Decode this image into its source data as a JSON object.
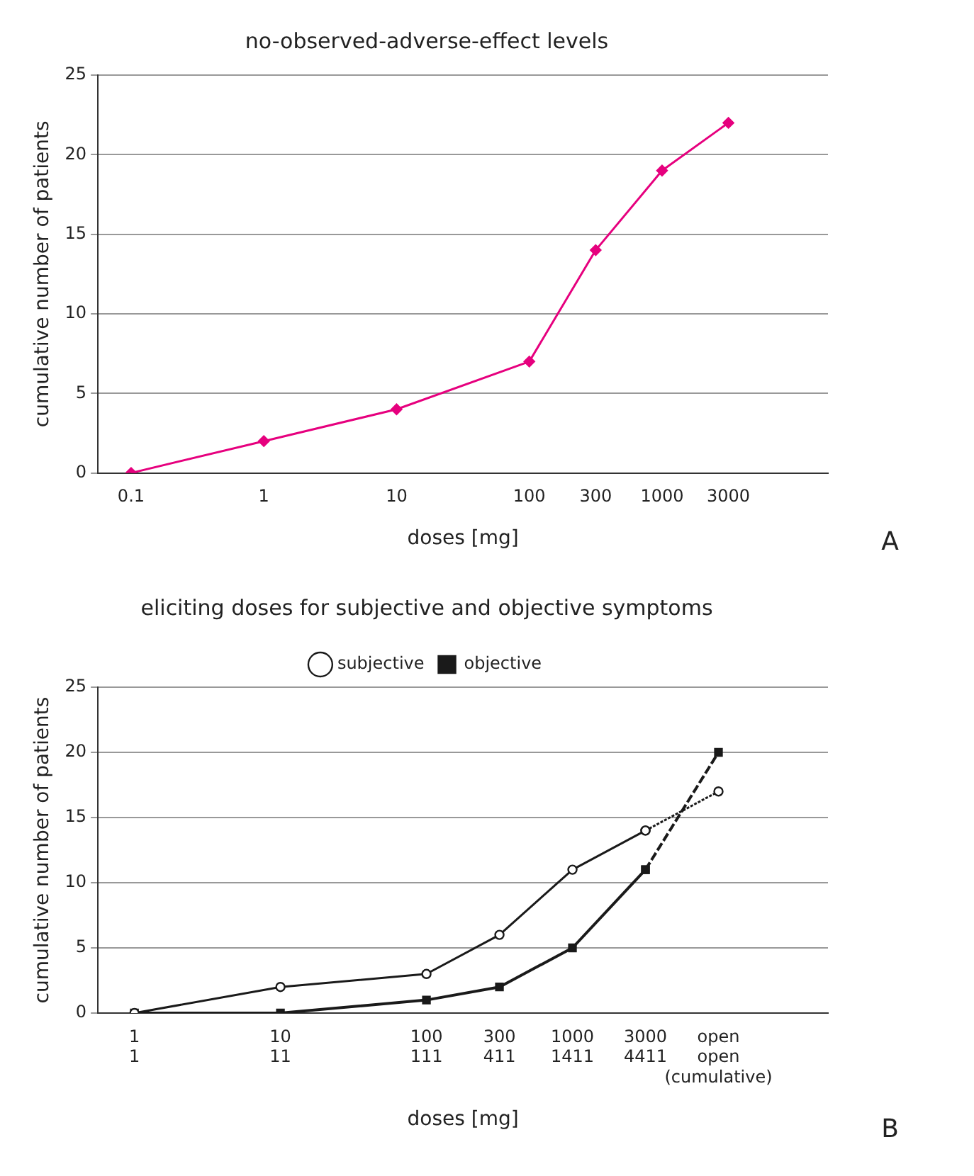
{
  "chart_data": [
    {
      "type": "line",
      "title": "no-observed-adverse-effect levels",
      "xlabel": "doses [mg]",
      "ylabel": "cumulative number of patients",
      "categories": [
        "0.1",
        null,
        "1",
        null,
        "10",
        null,
        "100",
        "300",
        "1000",
        "3000",
        null
      ],
      "series": [
        {
          "color": "#e6007e",
          "values": [
            0,
            null,
            2,
            null,
            4,
            null,
            7,
            14,
            19,
            22,
            null
          ],
          "marker": "diamond"
        }
      ],
      "ylim": [
        0,
        25
      ],
      "yticks": [
        0,
        5,
        10,
        15,
        20,
        25
      ],
      "grid": "y",
      "legend": false,
      "annotations": [
        "A"
      ]
    },
    {
      "type": "line",
      "title": "eliciting doses for subjective and objective symptoms",
      "xlabel": "doses [mg]",
      "ylabel": "cumulative number of patients",
      "categories": [
        "1\n1",
        null,
        "10\n11",
        null,
        "100\n111",
        "300\n411",
        "1000\n1411",
        "3000\n4411",
        "open\nopen (cumulative)",
        null
      ],
      "series": [
        {
          "name": "subjective",
          "color": "#1a1a1a",
          "marker": "circle",
          "values": [
            0,
            null,
            2,
            null,
            3,
            6,
            11,
            14,
            null,
            null
          ]
        },
        {
          "name": "objective",
          "color": "#1a1a1a",
          "marker": "square",
          "values": [
            0,
            null,
            0,
            null,
            1,
            2,
            5,
            11,
            null,
            null
          ]
        },
        {
          "color": "#1a1a1a",
          "marker": "circle",
          "line_style": "dotted",
          "values": [
            null,
            null,
            null,
            null,
            null,
            null,
            null,
            14,
            17,
            null
          ]
        },
        {
          "color": "#1a1a1a",
          "marker": "square",
          "line_style": "dashed",
          "values": [
            null,
            null,
            null,
            null,
            null,
            null,
            null,
            11,
            20,
            null
          ]
        }
      ],
      "ylim": [
        0,
        25
      ],
      "yticks": [
        0,
        5,
        10,
        15,
        20,
        25
      ],
      "grid": "y",
      "legend": "top",
      "annotations": [
        "B"
      ]
    }
  ]
}
